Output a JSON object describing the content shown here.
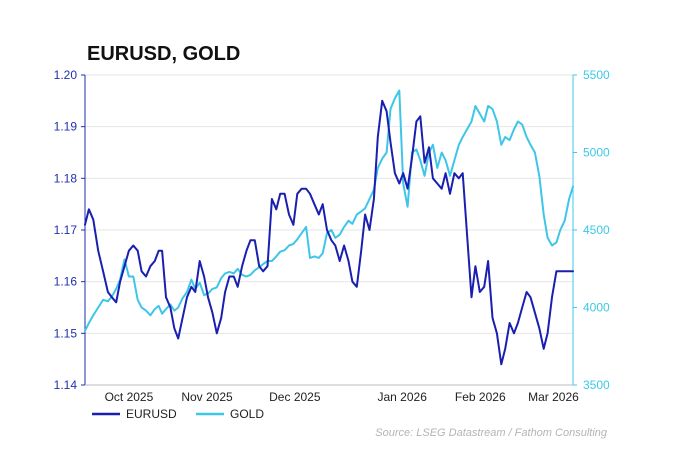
{
  "chart_data": {
    "type": "line",
    "title": "EURUSD,  GOLD",
    "source": "Source: LSEG Datastream / Fathom Consulting",
    "x_tick_labels": [
      "Oct 2025",
      "Nov 2025",
      "Dec 2025",
      "Jan 2026",
      "Feb 2026",
      "Mar 2026"
    ],
    "x_tick_positions": [
      0.09,
      0.25,
      0.43,
      0.65,
      0.81,
      0.96
    ],
    "left_axis": {
      "range": [
        1.14,
        1.2
      ],
      "ticks": [
        1.14,
        1.15,
        1.16,
        1.17,
        1.18,
        1.19,
        1.2
      ],
      "tick_labels": [
        "1.14",
        "1.15",
        "1.16",
        "1.17",
        "1.18",
        "1.19",
        "1.20"
      ]
    },
    "right_axis": {
      "range": [
        3500,
        5500
      ],
      "ticks": [
        3500,
        4000,
        4500,
        5000,
        5500
      ],
      "tick_labels": [
        "3500",
        "4000",
        "4500",
        "5000",
        "5500"
      ]
    },
    "series": [
      {
        "name": "EURUSD",
        "axis": "left",
        "color": "#1a1fb0",
        "x": [
          0.0,
          0.008,
          0.017,
          0.027,
          0.037,
          0.047,
          0.055,
          0.064,
          0.072,
          0.081,
          0.09,
          0.099,
          0.108,
          0.116,
          0.125,
          0.134,
          0.143,
          0.151,
          0.158,
          0.166,
          0.175,
          0.183,
          0.191,
          0.2,
          0.209,
          0.218,
          0.226,
          0.235,
          0.244,
          0.252,
          0.261,
          0.27,
          0.279,
          0.287,
          0.296,
          0.305,
          0.313,
          0.322,
          0.331,
          0.339,
          0.348,
          0.357,
          0.365,
          0.374,
          0.383,
          0.392,
          0.4,
          0.409,
          0.418,
          0.427,
          0.435,
          0.444,
          0.453,
          0.461,
          0.47,
          0.479,
          0.487,
          0.496,
          0.505,
          0.513,
          0.522,
          0.531,
          0.54,
          0.548,
          0.557,
          0.566,
          0.574,
          0.583,
          0.592,
          0.6,
          0.609,
          0.618,
          0.626,
          0.635,
          0.644,
          0.652,
          0.661,
          0.67,
          0.679,
          0.687,
          0.696,
          0.705,
          0.713,
          0.722,
          0.731,
          0.739,
          0.748,
          0.757,
          0.766,
          0.774,
          0.783,
          0.792,
          0.8,
          0.809,
          0.818,
          0.826,
          0.835,
          0.844,
          0.853,
          0.861,
          0.87,
          0.879,
          0.887,
          0.896,
          0.905,
          0.913,
          0.922,
          0.931,
          0.94,
          0.948,
          0.957,
          0.966,
          0.974,
          0.983,
          0.992,
          1.0
        ],
        "values": [
          1.171,
          1.174,
          1.172,
          1.166,
          1.162,
          1.158,
          1.157,
          1.156,
          1.16,
          1.163,
          1.166,
          1.167,
          1.166,
          1.162,
          1.161,
          1.163,
          1.164,
          1.166,
          1.166,
          1.157,
          1.155,
          1.151,
          1.149,
          1.153,
          1.157,
          1.159,
          1.158,
          1.164,
          1.161,
          1.157,
          1.154,
          1.15,
          1.153,
          1.158,
          1.161,
          1.161,
          1.159,
          1.163,
          1.166,
          1.168,
          1.168,
          1.163,
          1.162,
          1.163,
          1.176,
          1.174,
          1.177,
          1.177,
          1.173,
          1.171,
          1.177,
          1.178,
          1.178,
          1.177,
          1.175,
          1.173,
          1.175,
          1.17,
          1.168,
          1.167,
          1.164,
          1.167,
          1.164,
          1.16,
          1.159,
          1.166,
          1.173,
          1.17,
          1.176,
          1.188,
          1.195,
          1.193,
          1.187,
          1.181,
          1.179,
          1.181,
          1.178,
          1.184,
          1.191,
          1.192,
          1.183,
          1.186,
          1.18,
          1.179,
          1.178,
          1.181,
          1.177,
          1.181,
          1.18,
          1.181,
          1.169,
          1.157,
          1.163,
          1.158,
          1.159,
          1.164,
          1.153,
          1.15,
          1.144,
          1.147,
          1.152,
          1.15,
          1.152,
          1.155,
          1.158,
          1.157,
          1.154,
          1.151,
          1.147,
          1.15,
          1.157,
          1.162,
          1.162,
          1.162,
          1.162,
          1.162
        ]
      },
      {
        "name": "GOLD",
        "axis": "right",
        "color": "#3ec6e8",
        "x": [
          0.0,
          0.008,
          0.017,
          0.027,
          0.037,
          0.047,
          0.055,
          0.064,
          0.072,
          0.081,
          0.09,
          0.099,
          0.108,
          0.116,
          0.125,
          0.134,
          0.143,
          0.151,
          0.158,
          0.166,
          0.175,
          0.183,
          0.191,
          0.2,
          0.209,
          0.218,
          0.226,
          0.235,
          0.244,
          0.252,
          0.261,
          0.27,
          0.279,
          0.287,
          0.296,
          0.305,
          0.313,
          0.322,
          0.331,
          0.339,
          0.348,
          0.357,
          0.365,
          0.374,
          0.383,
          0.392,
          0.4,
          0.409,
          0.418,
          0.427,
          0.435,
          0.444,
          0.453,
          0.461,
          0.47,
          0.479,
          0.487,
          0.496,
          0.505,
          0.513,
          0.522,
          0.531,
          0.54,
          0.548,
          0.557,
          0.566,
          0.574,
          0.583,
          0.592,
          0.6,
          0.609,
          0.618,
          0.626,
          0.635,
          0.644,
          0.652,
          0.661,
          0.67,
          0.679,
          0.687,
          0.696,
          0.705,
          0.713,
          0.722,
          0.731,
          0.739,
          0.748,
          0.757,
          0.766,
          0.774,
          0.783,
          0.792,
          0.8,
          0.809,
          0.818,
          0.826,
          0.835,
          0.844,
          0.853,
          0.861,
          0.87,
          0.879,
          0.887,
          0.896,
          0.905,
          0.913,
          0.922,
          0.931,
          0.94,
          0.948,
          0.957,
          0.966,
          0.974,
          0.983,
          0.992,
          1.0
        ],
        "values": [
          3850,
          3900,
          3950,
          4000,
          4050,
          4040,
          4070,
          4120,
          4180,
          4310,
          4200,
          4200,
          4050,
          4000,
          3980,
          3950,
          3990,
          4010,
          3960,
          3990,
          4020,
          3980,
          4000,
          4060,
          4100,
          4180,
          4120,
          4160,
          4080,
          4090,
          4120,
          4130,
          4190,
          4220,
          4230,
          4220,
          4250,
          4210,
          4200,
          4210,
          4240,
          4260,
          4280,
          4300,
          4300,
          4330,
          4360,
          4370,
          4400,
          4410,
          4440,
          4480,
          4520,
          4320,
          4330,
          4320,
          4350,
          4480,
          4500,
          4450,
          4470,
          4520,
          4560,
          4540,
          4600,
          4620,
          4640,
          4700,
          4760,
          4900,
          4960,
          5000,
          5280,
          5350,
          5400,
          4800,
          4650,
          5000,
          5020,
          4950,
          4850,
          5000,
          5050,
          4900,
          5000,
          4950,
          4850,
          4950,
          5050,
          5100,
          5150,
          5200,
          5300,
          5250,
          5200,
          5300,
          5280,
          5200,
          5050,
          5100,
          5080,
          5150,
          5200,
          5180,
          5100,
          5050,
          5000,
          4850,
          4600,
          4450,
          4400,
          4420,
          4500,
          4560,
          4700,
          4780
        ]
      }
    ]
  }
}
